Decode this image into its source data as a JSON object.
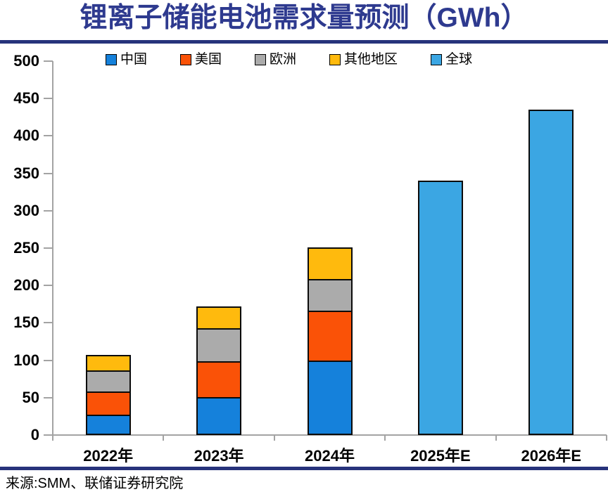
{
  "title": "锂离子储能电池需求量预测（GWh）",
  "source": "来源:SMM、联储证券研究院",
  "colors": {
    "title_navy": "#2e3a8f",
    "rule_navy": "#27337b",
    "axis_gray": "#a3a3a3",
    "bar_border": "#0b0b0b"
  },
  "chart_data": {
    "type": "bar",
    "stacked": true,
    "title": "锂离子储能电池需求量预测（GWh）",
    "unit": "GWh",
    "categories": [
      "2022年",
      "2023年",
      "2024年",
      "2025年E",
      "2026年E"
    ],
    "series": [
      {
        "name": "中国",
        "color": "#1581db",
        "values": [
          27,
          51,
          100,
          null,
          null
        ]
      },
      {
        "name": "美国",
        "color": "#fa5207",
        "values": [
          31,
          48,
          66,
          null,
          null
        ]
      },
      {
        "name": "欧洲",
        "color": "#ababab",
        "values": [
          28,
          44,
          43,
          null,
          null
        ]
      },
      {
        "name": "其他地区",
        "color": "#ffba0d",
        "values": [
          21,
          29,
          42,
          null,
          null
        ]
      },
      {
        "name": "全球",
        "color": "#3ba6e3",
        "values": [
          null,
          null,
          null,
          340,
          435
        ]
      }
    ],
    "stack_totals_estimated": [
      107,
      172,
      251,
      340,
      435
    ],
    "ylim": [
      0,
      500
    ],
    "yticks": [
      0,
      50,
      100,
      150,
      200,
      250,
      300,
      350,
      400,
      450,
      500
    ],
    "xlabel": "",
    "ylabel": "",
    "legend_position": "top",
    "grid": false
  }
}
